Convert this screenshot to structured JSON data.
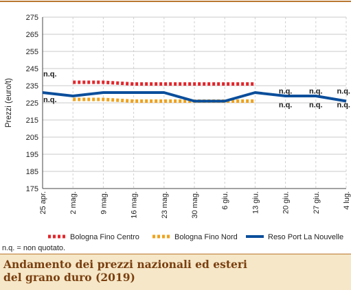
{
  "chart_data": {
    "type": "line",
    "ylabel": "Prezzi (euro/t)",
    "xlabel": "",
    "ylim": [
      175,
      275
    ],
    "yticks": [
      175,
      185,
      195,
      205,
      215,
      225,
      235,
      245,
      255,
      265,
      275
    ],
    "categories": [
      "25 apr.",
      "2 mag.",
      "9 mag.",
      "16 mag.",
      "23 mag.",
      "30 mag.",
      "6 giu.",
      "13 giu.",
      "20 giu.",
      "27 giu.",
      "4 lug."
    ],
    "grid": true,
    "legend_position": "bottom",
    "series": [
      {
        "name": "Bologna Fino Centro",
        "color": "#e3262b",
        "style": "dotted",
        "values": [
          null,
          237,
          237,
          236,
          236,
          236,
          236,
          236,
          null,
          null,
          null
        ]
      },
      {
        "name": "Bologna Fino Nord",
        "color": "#f0a21c",
        "style": "dotted",
        "values": [
          null,
          227,
          227,
          226,
          226,
          226,
          226,
          226,
          null,
          null,
          null
        ]
      },
      {
        "name": "Reso Port La Nouvelle",
        "color": "#0b4e9b",
        "style": "solid",
        "values": [
          231,
          229,
          231,
          231,
          231,
          226,
          226,
          231,
          229,
          229,
          226
        ]
      }
    ],
    "annotations": [
      {
        "text": "n.q.",
        "category": "25 apr.",
        "y": 242
      },
      {
        "text": "n.q.",
        "category": "25 apr.",
        "y": 227
      },
      {
        "text": "n.q.",
        "category": "20 giu.",
        "y": 232
      },
      {
        "text": "n.q.",
        "category": "20 giu.",
        "y": 224
      },
      {
        "text": "n.q.",
        "category": "27 giu.",
        "y": 232
      },
      {
        "text": "n.q.",
        "category": "27 giu.",
        "y": 224
      },
      {
        "text": "n.q.",
        "category": "4 lug.",
        "y": 232
      },
      {
        "text": "n.q.",
        "category": "4 lug.",
        "y": 224
      }
    ]
  },
  "footnote": "n.q. = non quotato.",
  "caption": {
    "line1": "Andamento dei prezzi nazionali ed esteri",
    "line2": "del grano duro (2019)"
  }
}
